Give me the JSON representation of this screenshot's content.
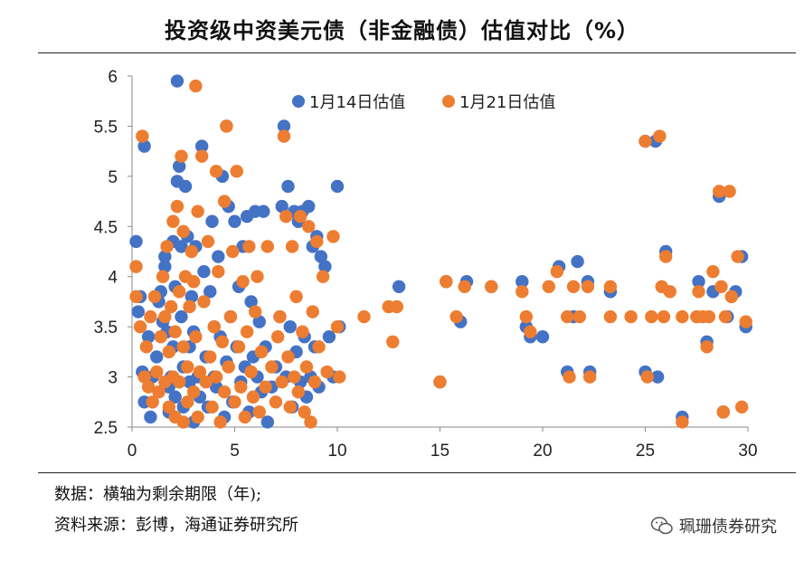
{
  "title": "投资级中资美元债（非金融债）估值对比（%）",
  "notes": {
    "data_note": "数据：横轴为剩余期限（年);",
    "source_note": "资料来源：彭博，海通证券研究所"
  },
  "brand": "珮珊债券研究",
  "chart_data": {
    "type": "scatter",
    "title": "投资级中资美元债（非金融债）估值对比（%）",
    "xlabel": "",
    "ylabel": "",
    "xlim": [
      0,
      30
    ],
    "ylim": [
      2.5,
      6
    ],
    "xticks": [
      0,
      5,
      10,
      15,
      20,
      25,
      30
    ],
    "yticks": [
      2.5,
      3,
      3.5,
      4,
      4.5,
      5,
      5.5,
      6
    ],
    "grid": false,
    "legend_position": "top",
    "series": [
      {
        "name": "1月14日估值",
        "color": "#4472C4",
        "points": [
          [
            0.2,
            4.35
          ],
          [
            0.4,
            3.8
          ],
          [
            0.3,
            3.65
          ],
          [
            0.6,
            5.3
          ],
          [
            0.8,
            3.4
          ],
          [
            0.5,
            3.05
          ],
          [
            0.6,
            2.75
          ],
          [
            0.9,
            2.6
          ],
          [
            1.0,
            3.0
          ],
          [
            1.2,
            3.2
          ],
          [
            1.3,
            3.75
          ],
          [
            1.4,
            3.85
          ],
          [
            1.5,
            3.55
          ],
          [
            1.6,
            4.1
          ],
          [
            1.6,
            4.2
          ],
          [
            1.7,
            3.45
          ],
          [
            1.8,
            2.9
          ],
          [
            1.8,
            2.65
          ],
          [
            1.9,
            3.0
          ],
          [
            2.0,
            3.3
          ],
          [
            2.0,
            4.35
          ],
          [
            2.1,
            3.9
          ],
          [
            2.1,
            2.8
          ],
          [
            2.2,
            4.95
          ],
          [
            2.2,
            5.95
          ],
          [
            2.3,
            5.1
          ],
          [
            2.4,
            4.3
          ],
          [
            2.4,
            3.6
          ],
          [
            2.5,
            3.1
          ],
          [
            2.5,
            2.7
          ],
          [
            2.6,
            4.9
          ],
          [
            2.7,
            4.4
          ],
          [
            2.8,
            3.3
          ],
          [
            2.8,
            2.95
          ],
          [
            2.9,
            3.8
          ],
          [
            3.0,
            2.55
          ],
          [
            3.0,
            3.45
          ],
          [
            3.1,
            4.3
          ],
          [
            3.2,
            3.0
          ],
          [
            3.3,
            2.8
          ],
          [
            3.4,
            5.3
          ],
          [
            3.5,
            4.05
          ],
          [
            3.6,
            3.2
          ],
          [
            3.7,
            2.7
          ],
          [
            3.8,
            3.85
          ],
          [
            3.9,
            4.55
          ],
          [
            4.0,
            3.5
          ],
          [
            4.0,
            3.0
          ],
          [
            4.1,
            2.9
          ],
          [
            4.2,
            4.2
          ],
          [
            4.3,
            3.4
          ],
          [
            4.4,
            5.0
          ],
          [
            4.5,
            2.6
          ],
          [
            4.6,
            3.15
          ],
          [
            4.6,
            5.5
          ],
          [
            4.7,
            4.7
          ],
          [
            4.8,
            3.6
          ],
          [
            4.9,
            2.75
          ],
          [
            5.0,
            4.55
          ],
          [
            5.1,
            3.3
          ],
          [
            5.2,
            3.9
          ],
          [
            5.3,
            2.95
          ],
          [
            5.4,
            4.3
          ],
          [
            5.5,
            3.1
          ],
          [
            5.6,
            4.6
          ],
          [
            5.7,
            2.65
          ],
          [
            5.8,
            3.75
          ],
          [
            5.9,
            3.2
          ],
          [
            6.0,
            4.65
          ],
          [
            6.1,
            3.0
          ],
          [
            6.2,
            3.55
          ],
          [
            6.3,
            2.85
          ],
          [
            6.4,
            4.65
          ],
          [
            6.5,
            3.3
          ],
          [
            6.6,
            2.55
          ],
          [
            6.8,
            2.9
          ],
          [
            7.0,
            3.1
          ],
          [
            7.2,
            3.6
          ],
          [
            7.3,
            4.7
          ],
          [
            7.4,
            5.5
          ],
          [
            7.5,
            3.0
          ],
          [
            7.6,
            4.9
          ],
          [
            7.7,
            3.5
          ],
          [
            7.8,
            2.7
          ],
          [
            7.9,
            4.65
          ],
          [
            8.0,
            3.25
          ],
          [
            8.1,
            4.55
          ],
          [
            8.2,
            2.95
          ],
          [
            8.3,
            4.65
          ],
          [
            8.4,
            3.4
          ],
          [
            8.5,
            2.8
          ],
          [
            8.6,
            4.7
          ],
          [
            8.7,
            3.0
          ],
          [
            8.8,
            4.3
          ],
          [
            8.9,
            3.3
          ],
          [
            9.0,
            4.4
          ],
          [
            9.1,
            2.9
          ],
          [
            9.2,
            4.2
          ],
          [
            9.4,
            4.1
          ],
          [
            9.6,
            3.4
          ],
          [
            9.8,
            3.0
          ],
          [
            10.0,
            4.9
          ],
          [
            10.1,
            3.5
          ],
          [
            13.0,
            3.9
          ],
          [
            15.0,
            2.95
          ],
          [
            15.3,
            3.95
          ],
          [
            16.0,
            3.55
          ],
          [
            16.3,
            3.95
          ],
          [
            17.5,
            3.9
          ],
          [
            19.0,
            3.95
          ],
          [
            19.2,
            3.5
          ],
          [
            19.4,
            3.4
          ],
          [
            20.0,
            3.4
          ],
          [
            20.8,
            4.1
          ],
          [
            21.2,
            3.05
          ],
          [
            21.5,
            3.6
          ],
          [
            21.7,
            4.15
          ],
          [
            22.2,
            3.95
          ],
          [
            22.3,
            3.05
          ],
          [
            23.3,
            3.85
          ],
          [
            25.0,
            5.35
          ],
          [
            25.0,
            3.05
          ],
          [
            25.5,
            5.35
          ],
          [
            25.6,
            3.0
          ],
          [
            26.0,
            4.25
          ],
          [
            26.8,
            2.6
          ],
          [
            27.6,
            3.95
          ],
          [
            28.0,
            3.35
          ],
          [
            28.3,
            3.85
          ],
          [
            28.6,
            4.8
          ],
          [
            28.8,
            2.65
          ],
          [
            29.0,
            3.6
          ],
          [
            29.4,
            3.85
          ],
          [
            29.7,
            4.2
          ],
          [
            29.9,
            3.5
          ]
        ]
      },
      {
        "name": "1月21日估值",
        "color": "#ED7D31",
        "points": [
          [
            0.2,
            4.1
          ],
          [
            0.2,
            3.8
          ],
          [
            0.4,
            3.5
          ],
          [
            0.5,
            5.4
          ],
          [
            0.6,
            3.0
          ],
          [
            0.7,
            3.3
          ],
          [
            0.8,
            2.9
          ],
          [
            0.9,
            3.6
          ],
          [
            1.0,
            2.75
          ],
          [
            1.1,
            3.8
          ],
          [
            1.2,
            3.05
          ],
          [
            1.3,
            2.85
          ],
          [
            1.4,
            3.4
          ],
          [
            1.5,
            4.0
          ],
          [
            1.6,
            3.6
          ],
          [
            1.6,
            2.95
          ],
          [
            1.7,
            4.3
          ],
          [
            1.8,
            3.25
          ],
          [
            1.8,
            2.7
          ],
          [
            1.9,
            3.7
          ],
          [
            2.0,
            4.55
          ],
          [
            2.0,
            3.0
          ],
          [
            2.1,
            3.45
          ],
          [
            2.1,
            2.6
          ],
          [
            2.2,
            4.7
          ],
          [
            2.3,
            3.85
          ],
          [
            2.3,
            2.95
          ],
          [
            2.4,
            5.2
          ],
          [
            2.5,
            4.45
          ],
          [
            2.5,
            3.3
          ],
          [
            2.5,
            2.55
          ],
          [
            2.6,
            4.0
          ],
          [
            2.7,
            3.1
          ],
          [
            2.7,
            2.75
          ],
          [
            2.8,
            3.7
          ],
          [
            2.9,
            4.25
          ],
          [
            3.0,
            3.95
          ],
          [
            3.0,
            2.85
          ],
          [
            3.1,
            5.9
          ],
          [
            3.1,
            3.4
          ],
          [
            3.2,
            4.65
          ],
          [
            3.2,
            2.6
          ],
          [
            3.3,
            3.05
          ],
          [
            3.4,
            5.2
          ],
          [
            3.5,
            3.75
          ],
          [
            3.6,
            2.95
          ],
          [
            3.7,
            4.35
          ],
          [
            3.8,
            3.2
          ],
          [
            3.9,
            2.7
          ],
          [
            4.0,
            3.5
          ],
          [
            4.1,
            5.05
          ],
          [
            4.1,
            3.0
          ],
          [
            4.2,
            4.05
          ],
          [
            4.3,
            2.55
          ],
          [
            4.4,
            3.35
          ],
          [
            4.5,
            4.75
          ],
          [
            4.5,
            2.85
          ],
          [
            4.6,
            5.5
          ],
          [
            4.7,
            3.1
          ],
          [
            4.8,
            3.6
          ],
          [
            4.9,
            4.25
          ],
          [
            5.0,
            2.75
          ],
          [
            5.1,
            5.05
          ],
          [
            5.2,
            3.3
          ],
          [
            5.3,
            2.9
          ],
          [
            5.4,
            3.95
          ],
          [
            5.5,
            2.6
          ],
          [
            5.6,
            3.45
          ],
          [
            5.7,
            4.3
          ],
          [
            5.8,
            3.05
          ],
          [
            5.9,
            2.8
          ],
          [
            6.0,
            3.65
          ],
          [
            6.1,
            4.0
          ],
          [
            6.2,
            2.65
          ],
          [
            6.3,
            3.25
          ],
          [
            6.5,
            2.9
          ],
          [
            6.6,
            4.3
          ],
          [
            6.8,
            3.1
          ],
          [
            7.0,
            2.75
          ],
          [
            7.1,
            3.4
          ],
          [
            7.2,
            3.6
          ],
          [
            7.3,
            2.95
          ],
          [
            7.4,
            5.4
          ],
          [
            7.5,
            4.6
          ],
          [
            7.6,
            3.2
          ],
          [
            7.7,
            2.7
          ],
          [
            7.8,
            4.3
          ],
          [
            7.9,
            3.0
          ],
          [
            8.0,
            3.8
          ],
          [
            8.1,
            2.85
          ],
          [
            8.2,
            4.6
          ],
          [
            8.3,
            3.45
          ],
          [
            8.4,
            2.65
          ],
          [
            8.5,
            3.1
          ],
          [
            8.6,
            4.5
          ],
          [
            8.7,
            2.55
          ],
          [
            8.8,
            3.65
          ],
          [
            8.9,
            2.95
          ],
          [
            9.0,
            4.35
          ],
          [
            9.1,
            3.3
          ],
          [
            9.3,
            4.0
          ],
          [
            9.5,
            3.05
          ],
          [
            9.8,
            4.4
          ],
          [
            10.0,
            3.5
          ],
          [
            10.1,
            3.0
          ],
          [
            11.3,
            3.6
          ],
          [
            12.5,
            3.7
          ],
          [
            12.7,
            3.35
          ],
          [
            12.9,
            3.7
          ],
          [
            15.0,
            2.95
          ],
          [
            15.3,
            3.95
          ],
          [
            15.8,
            3.6
          ],
          [
            16.2,
            3.9
          ],
          [
            17.5,
            3.9
          ],
          [
            19.0,
            3.85
          ],
          [
            19.2,
            3.6
          ],
          [
            19.4,
            3.45
          ],
          [
            20.3,
            3.9
          ],
          [
            20.7,
            4.05
          ],
          [
            21.2,
            3.6
          ],
          [
            21.3,
            3.0
          ],
          [
            21.5,
            3.9
          ],
          [
            21.8,
            3.6
          ],
          [
            22.2,
            3.9
          ],
          [
            22.3,
            3.0
          ],
          [
            23.3,
            3.9
          ],
          [
            23.3,
            3.6
          ],
          [
            24.3,
            3.6
          ],
          [
            25.0,
            5.35
          ],
          [
            25.1,
            3.0
          ],
          [
            25.3,
            3.6
          ],
          [
            25.7,
            5.4
          ],
          [
            25.8,
            3.9
          ],
          [
            25.9,
            3.6
          ],
          [
            26.0,
            4.2
          ],
          [
            26.2,
            3.85
          ],
          [
            26.8,
            2.55
          ],
          [
            26.8,
            3.6
          ],
          [
            27.5,
            3.6
          ],
          [
            27.6,
            3.85
          ],
          [
            27.8,
            3.6
          ],
          [
            28.0,
            3.3
          ],
          [
            28.1,
            3.6
          ],
          [
            28.3,
            4.05
          ],
          [
            28.6,
            4.85
          ],
          [
            28.7,
            3.9
          ],
          [
            28.8,
            2.65
          ],
          [
            28.9,
            3.6
          ],
          [
            29.1,
            4.85
          ],
          [
            29.2,
            3.8
          ],
          [
            29.5,
            4.2
          ],
          [
            29.7,
            2.7
          ],
          [
            29.9,
            3.55
          ]
        ]
      }
    ]
  }
}
